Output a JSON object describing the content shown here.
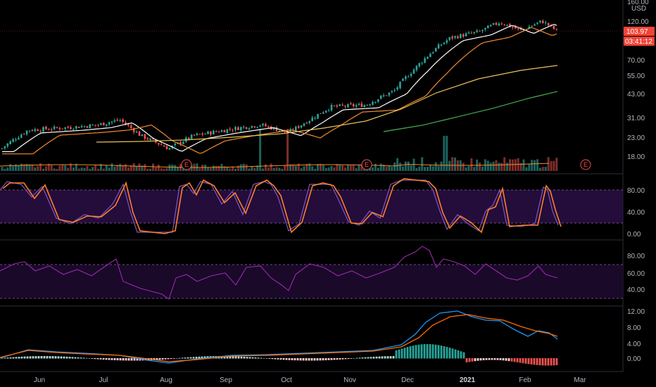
{
  "colors": {
    "background": "#000000",
    "up": "#26a69a",
    "down": "#ef5350",
    "ma_white": "#ffffff",
    "ma_orange": "#f28b30",
    "ma_yellow": "#e8c25a",
    "ma_green": "#3e9b4a",
    "stoch_k": "#7e57c2",
    "stoch_d": "#ff7f2a",
    "rsi": "#9c27b0",
    "macd": "#2196f3",
    "signal": "#ff6d00",
    "band_fill": "#2a0e45",
    "axis_text": "#b2b5be",
    "price_tag": "#f44336"
  },
  "price_axis": {
    "currency": "USD",
    "ticks": [
      "160.00",
      "120.00",
      "70.00",
      "55.00",
      "43.00",
      "31.00",
      "23.00",
      "18.00"
    ],
    "last_price": "103.97",
    "countdown": "03:41:12"
  },
  "earnings_marker": "E",
  "stoch_axis": {
    "ticks": [
      "80.00",
      "40.00",
      "0.00"
    ]
  },
  "rsi_axis": {
    "ticks": [
      "80.00",
      "60.00",
      "40.00"
    ]
  },
  "macd_axis": {
    "ticks": [
      "12.00",
      "8.00",
      "4.00",
      "0.00"
    ]
  },
  "time_axis": {
    "labels": [
      "Jun",
      "Jul",
      "Aug",
      "Sep",
      "Oct",
      "Nov",
      "Dec",
      "2021",
      "Feb",
      "Mar"
    ]
  },
  "chart_data": {
    "type": "candlestick",
    "scale": "log",
    "price_series_approx": [
      {
        "x": "Jun",
        "y": 22
      },
      {
        "x": "Jul",
        "y": 29
      },
      {
        "x": "Aug",
        "y": 21
      },
      {
        "x": "Sep",
        "y": 28
      },
      {
        "x": "Oct",
        "y": 27
      },
      {
        "x": "Nov",
        "y": 37
      },
      {
        "x": "Dec",
        "y": 65
      },
      {
        "x": "2021",
        "y": 118
      },
      {
        "x": "Feb",
        "y": 112
      }
    ],
    "last_close": 103.97,
    "panels": [
      "price+volume",
      "stochastic",
      "rsi",
      "macd"
    ]
  }
}
